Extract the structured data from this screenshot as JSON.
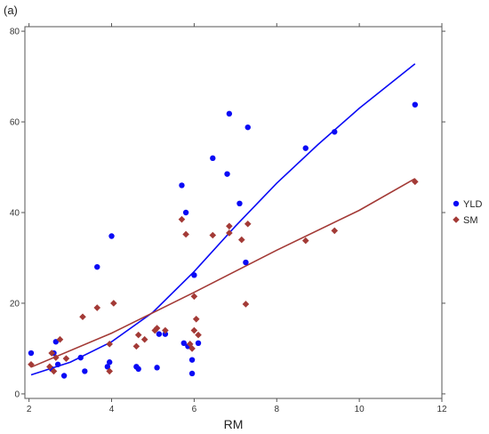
{
  "panel_label": "(a)",
  "chart_data": {
    "type": "scatter",
    "title": "",
    "xlabel": "RM",
    "ylabel": "",
    "xlim": [
      1.9,
      12
    ],
    "ylim": [
      -1,
      81
    ],
    "xticks": [
      2,
      4,
      6,
      8,
      10,
      12
    ],
    "yticks": [
      0,
      20,
      40,
      60,
      80
    ],
    "grid": false,
    "legend_position": "right",
    "series": [
      {
        "name": "YLD",
        "color": "#0a0af5",
        "marker": "circle",
        "points": [
          [
            2.05,
            9.0
          ],
          [
            2.55,
            5.5
          ],
          [
            2.6,
            9.0
          ],
          [
            2.65,
            11.5
          ],
          [
            2.7,
            6.5
          ],
          [
            2.85,
            4.0
          ],
          [
            3.25,
            8.0
          ],
          [
            3.35,
            5.0
          ],
          [
            3.65,
            28.0
          ],
          [
            3.9,
            6.0
          ],
          [
            3.95,
            7.0
          ],
          [
            4.0,
            34.8
          ],
          [
            4.6,
            6.0
          ],
          [
            4.65,
            5.5
          ],
          [
            5.1,
            5.8
          ],
          [
            5.15,
            13.2
          ],
          [
            5.3,
            13.2
          ],
          [
            5.7,
            46.0
          ],
          [
            5.75,
            11.2
          ],
          [
            5.8,
            40.0
          ],
          [
            5.85,
            10.5
          ],
          [
            5.95,
            4.5
          ],
          [
            5.95,
            7.5
          ],
          [
            6.0,
            26.2
          ],
          [
            6.1,
            11.2
          ],
          [
            6.45,
            52.0
          ],
          [
            6.8,
            48.5
          ],
          [
            6.85,
            61.8
          ],
          [
            7.1,
            42.0
          ],
          [
            7.25,
            29.0
          ],
          [
            7.3,
            58.8
          ],
          [
            8.7,
            54.2
          ],
          [
            9.4,
            57.8
          ],
          [
            11.35,
            63.8
          ]
        ]
      },
      {
        "name": "SM",
        "color": "#a33a36",
        "marker": "diamond",
        "points": [
          [
            2.05,
            6.5
          ],
          [
            2.5,
            6.0
          ],
          [
            2.55,
            9.0
          ],
          [
            2.6,
            5.0
          ],
          [
            2.65,
            8.0
          ],
          [
            2.75,
            12.0
          ],
          [
            2.9,
            7.8
          ],
          [
            3.3,
            17.0
          ],
          [
            3.65,
            19.0
          ],
          [
            3.95,
            11.0
          ],
          [
            3.95,
            5.0
          ],
          [
            4.05,
            20.0
          ],
          [
            4.6,
            10.5
          ],
          [
            4.65,
            13.0
          ],
          [
            4.8,
            12.0
          ],
          [
            5.05,
            14.0
          ],
          [
            5.1,
            14.5
          ],
          [
            5.3,
            14.0
          ],
          [
            5.7,
            38.5
          ],
          [
            5.8,
            35.2
          ],
          [
            5.9,
            11.0
          ],
          [
            5.95,
            10.0
          ],
          [
            6.0,
            14.0
          ],
          [
            6.0,
            21.5
          ],
          [
            6.05,
            16.5
          ],
          [
            6.1,
            13.0
          ],
          [
            6.45,
            35.0
          ],
          [
            6.85,
            37.0
          ],
          [
            6.85,
            35.5
          ],
          [
            7.15,
            34.0
          ],
          [
            7.25,
            19.8
          ],
          [
            7.3,
            37.5
          ],
          [
            8.7,
            33.8
          ],
          [
            9.4,
            36.0
          ],
          [
            11.35,
            46.8
          ]
        ],
        "fit": [
          [
            2.05,
            5.9
          ],
          [
            4.0,
            13.4
          ],
          [
            6.0,
            22.4
          ],
          [
            8.0,
            31.7
          ],
          [
            10.0,
            40.5
          ],
          [
            11.35,
            47.5
          ]
        ]
      }
    ],
    "fits": [
      {
        "series": "YLD",
        "color": "#0a0af5",
        "points": [
          [
            2.05,
            4.2
          ],
          [
            3.0,
            7.0
          ],
          [
            4.0,
            11.5
          ],
          [
            5.0,
            18.0
          ],
          [
            6.0,
            27.0
          ],
          [
            7.0,
            37.0
          ],
          [
            8.0,
            46.5
          ],
          [
            9.0,
            55.0
          ],
          [
            10.0,
            63.0
          ],
          [
            11.35,
            72.8
          ]
        ]
      },
      {
        "series": "SM",
        "color": "#a33a36",
        "points": [
          [
            2.05,
            5.9
          ],
          [
            4.0,
            13.4
          ],
          [
            6.0,
            22.4
          ],
          [
            8.0,
            31.7
          ],
          [
            10.0,
            40.5
          ],
          [
            11.35,
            47.5
          ]
        ]
      }
    ]
  }
}
